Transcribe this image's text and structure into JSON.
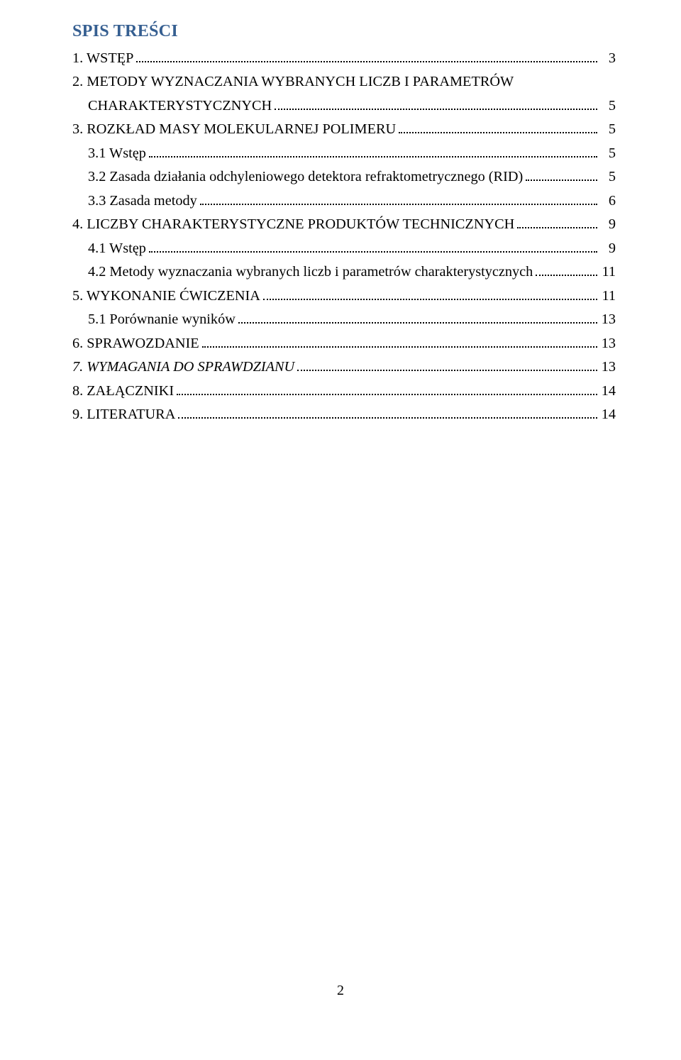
{
  "title": "SPIS TREŚCI",
  "colors": {
    "heading": "#365f91",
    "text": "#000000",
    "background": "#ffffff"
  },
  "typography": {
    "family": "Times New Roman",
    "title_size_pt": 18,
    "body_size_pt": 15
  },
  "toc": [
    {
      "label": "1. WSTĘP",
      "page": "3",
      "indent": 0,
      "italic": false
    },
    {
      "label": "2. METODY WYZNACZANIA WYBRANYCH LICZB I PARAMETRÓW",
      "page": "",
      "indent": 0,
      "italic": false,
      "continuation": true
    },
    {
      "label": "CHARAKTERYSTYCZNYCH",
      "page": "5",
      "indent": 1,
      "italic": false
    },
    {
      "label": "3. ROZKŁAD MASY MOLEKULARNEJ POLIMERU",
      "page": "5",
      "indent": 0,
      "italic": false
    },
    {
      "label": "3.1 Wstęp",
      "page": "5",
      "indent": 1,
      "italic": false
    },
    {
      "label": "3.2 Zasada działania odchyleniowego detektora refraktometrycznego (RID)",
      "page": "5",
      "indent": 1,
      "italic": false
    },
    {
      "label": "3.3 Zasada metody",
      "page": "6",
      "indent": 1,
      "italic": false
    },
    {
      "label": "4. LICZBY CHARAKTERYSTYCZNE PRODUKTÓW TECHNICZNYCH",
      "page": "9",
      "indent": 0,
      "italic": false
    },
    {
      "label": "4.1 Wstęp",
      "page": "9",
      "indent": 1,
      "italic": false
    },
    {
      "label": "4.2 Metody wyznaczania wybranych liczb i parametrów charakterystycznych",
      "page": "11",
      "indent": 1,
      "italic": false
    },
    {
      "label": "5. WYKONANIE ĆWICZENIA",
      "page": "11",
      "indent": 0,
      "italic": false
    },
    {
      "label": "5.1 Porównanie wyników",
      "page": "13",
      "indent": 1,
      "italic": false
    },
    {
      "label": "6. SPRAWOZDANIE",
      "page": "13",
      "indent": 0,
      "italic": false
    },
    {
      "label": "7.  WYMAGANIA DO SPRAWDZIANU",
      "page": "13",
      "indent": 0,
      "italic": true
    },
    {
      "label": "8. ZAŁĄCZNIKI",
      "page": "14",
      "indent": 0,
      "italic": false
    },
    {
      "label": "9. LITERATURA",
      "page": "14",
      "indent": 0,
      "italic": false
    }
  ],
  "page_number": "2"
}
